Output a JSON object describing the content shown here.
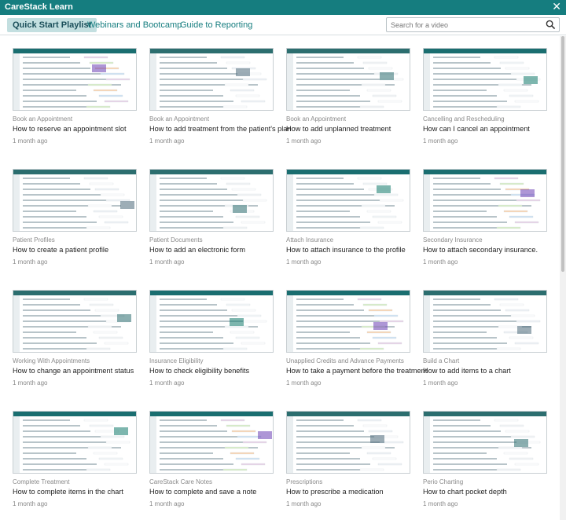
{
  "app": {
    "title": "CareStack Learn",
    "close_icon": "close-icon"
  },
  "tabs": [
    {
      "label": "Quick Start Playlist",
      "active": true
    },
    {
      "label": "Webinars and Bootcamp",
      "active": false
    },
    {
      "label": "Guide to Reporting",
      "active": false
    }
  ],
  "search": {
    "placeholder": "Search for a video",
    "icon": "search-icon"
  },
  "videos": [
    {
      "category": "Book an Appointment",
      "title": "How to reserve an appointment slot",
      "age": "1 month ago"
    },
    {
      "category": "Book an Appointment",
      "title": "How to add treatment from the patient's plan",
      "age": "1 month ago"
    },
    {
      "category": "Book an Appointment",
      "title": "How to add unplanned treatment",
      "age": "1 month ago"
    },
    {
      "category": "Cancelling and Rescheduling",
      "title": "How can I cancel an appointment",
      "age": "1 month ago"
    },
    {
      "category": "Patient Profiles",
      "title": "How to create a patient profile",
      "age": "1 month ago"
    },
    {
      "category": "Patient Documents",
      "title": "How to add an electronic form",
      "age": "1 month ago"
    },
    {
      "category": "Attach Insurance",
      "title": "How to attach insurance to the profile",
      "age": "1 month ago"
    },
    {
      "category": "Secondary Insurance",
      "title": "How to attach secondary insurance.",
      "age": "1 month ago"
    },
    {
      "category": "Working With Appointments",
      "title": "How to change an appointment status",
      "age": "1 month ago"
    },
    {
      "category": "Insurance Eligibility",
      "title": "How to check eligibility benefits",
      "age": "1 month ago"
    },
    {
      "category": "Unapplied Credits and Advance Payments",
      "title": "How to take a payment before the treatment",
      "age": "1 month ago"
    },
    {
      "category": "Build a Chart",
      "title": "How to add items to a chart",
      "age": "1 month ago"
    },
    {
      "category": "Complete Treatment",
      "title": "How to complete items in the chart",
      "age": "1 month ago"
    },
    {
      "category": "CareStack Care Notes",
      "title": "How to complete and save a note",
      "age": "1 month ago"
    },
    {
      "category": "Prescriptions",
      "title": "How to prescribe a medication",
      "age": "1 month ago"
    },
    {
      "category": "Perio Charting",
      "title": "How to chart pocket depth",
      "age": "1 month ago"
    }
  ],
  "colors": {
    "brand": "#157d7f",
    "active_tab_bg": "#c3dfe0"
  }
}
